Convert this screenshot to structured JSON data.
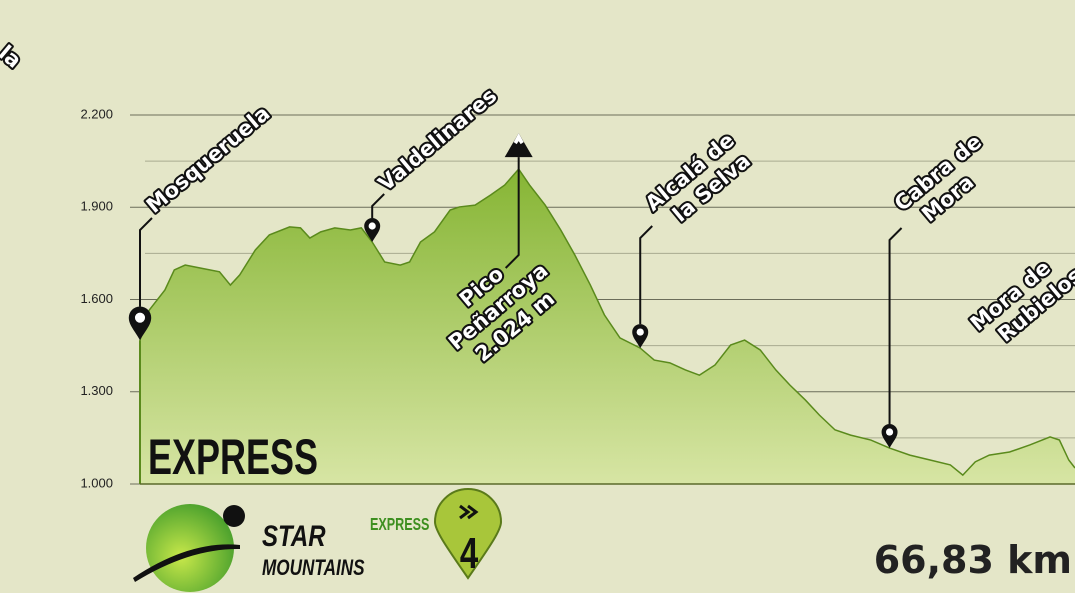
{
  "top_fragment": "la",
  "chart_data": {
    "type": "area",
    "x": [
      0,
      0.6,
      1.6,
      2.2,
      2.9,
      3.9,
      5.1,
      5.8,
      6.4,
      7.4,
      8.3,
      9.6,
      10.3,
      10.9,
      11.6,
      12.5,
      13.5,
      14.2,
      14.9,
      15.7,
      16.7,
      17.3,
      18.0,
      18.9,
      19.9,
      20.5,
      21.5,
      22.5,
      23.4,
      24.3,
      25.0,
      26.0,
      27.0,
      27.9,
      28.9,
      29.8,
      30.8,
      32.1,
      33.0,
      34.0,
      35.0,
      35.9,
      36.9,
      37.9,
      38.8,
      39.8,
      40.8,
      41.7,
      42.7,
      43.6,
      44.6,
      45.6,
      46.9,
      48.1,
      49.4,
      50.7,
      52.0,
      52.8,
      53.6,
      54.5,
      55.8,
      57.1,
      58.4,
      59.0,
      59.6,
      60.0
    ],
    "values": [
      1468,
      1566,
      1631,
      1696,
      1712,
      1702,
      1690,
      1647,
      1680,
      1761,
      1810,
      1836,
      1833,
      1800,
      1820,
      1833,
      1826,
      1833,
      1787,
      1722,
      1712,
      1722,
      1787,
      1820,
      1891,
      1901,
      1907,
      1940,
      1972,
      2024,
      1972,
      1907,
      1826,
      1745,
      1647,
      1550,
      1475,
      1442,
      1403,
      1394,
      1371,
      1354,
      1387,
      1452,
      1468,
      1436,
      1371,
      1322,
      1273,
      1224,
      1176,
      1159,
      1143,
      1117,
      1094,
      1078,
      1062,
      1029,
      1072,
      1094,
      1104,
      1127,
      1153,
      1143,
      1078,
      1052
    ],
    "xlim": [
      0,
      60
    ],
    "ylim": [
      1000,
      2200
    ],
    "yticks": [
      {
        "value": 1000,
        "label": "1.000"
      },
      {
        "value": 1300,
        "label": "1.300"
      },
      {
        "value": 1600,
        "label": "1.600"
      },
      {
        "value": 1900,
        "label": "1.900"
      },
      {
        "value": 2200,
        "label": "2.200"
      }
    ],
    "minor_yticks": [
      1150,
      1450,
      1750,
      2050
    ],
    "color": "#7fae2e",
    "line_color": "#5a8a1c",
    "grid": true,
    "annotations": [
      {
        "x": 0,
        "marker": "pin",
        "lines": [
          "Mosqueruela"
        ]
      },
      {
        "x": 14.9,
        "marker": "pin",
        "lines": [
          "Valdelinares"
        ]
      },
      {
        "x": 24.3,
        "marker": "peak",
        "lines": [
          "Pico",
          "Peñarroya",
          "2.024 m"
        ]
      },
      {
        "x": 32.1,
        "marker": "pin",
        "lines": [
          "Alcalá de",
          "la Selva"
        ]
      },
      {
        "x": 48.1,
        "marker": "pin",
        "lines": [
          "Cabra de",
          "Mora"
        ]
      },
      {
        "x": 61,
        "marker": "pin",
        "lines": [
          "Mora de",
          "Rubielos"
        ]
      }
    ]
  },
  "profile_label": "EXPRESS",
  "logo": {
    "line1": "STAR",
    "line2": "MOUNTAINS"
  },
  "badge": {
    "label": "EXPRESS",
    "number": "4"
  },
  "distance": "66,83 km"
}
